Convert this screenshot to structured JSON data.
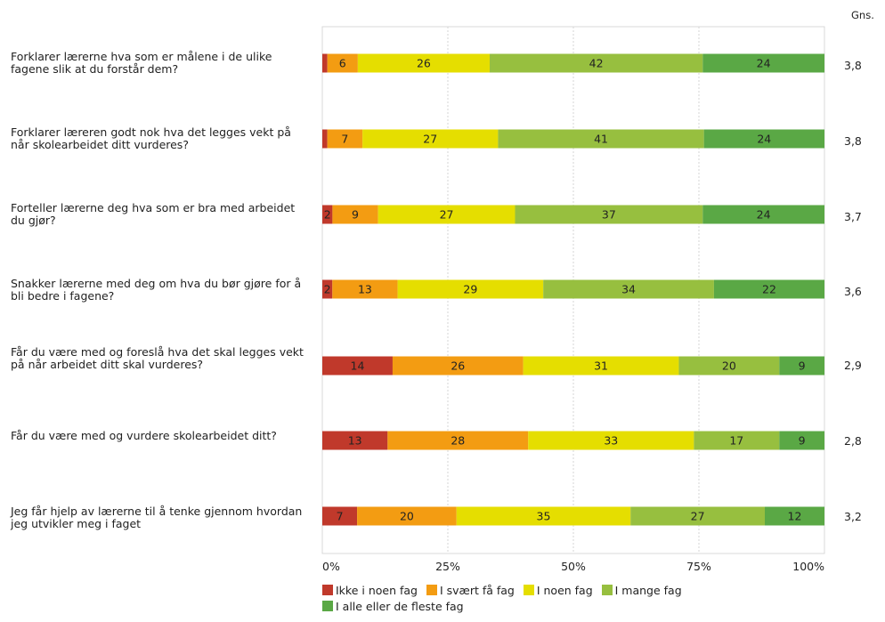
{
  "chart_data": {
    "type": "bar",
    "orientation": "horizontal",
    "stacked": true,
    "avg_header": "Gns.",
    "categories": [
      "Forklarer lærerne hva som er målene i de ulike fagene slik at du forstår dem?",
      "Forklarer læreren godt nok hva det legges vekt på når skolearbeidet ditt vurderes?",
      "Forteller lærerne deg hva som er bra med arbeidet du gjør?",
      "Snakker lærerne med deg om hva du bør gjøre for å bli bedre i fagene?",
      "Får du være med og foreslå hva det skal legges vekt på når arbeidet ditt skal vurderes?",
      "Får du være med og vurdere skolearbeidet ditt?",
      "Jeg får hjelp av lærerne til å tenke gjennom hvordan jeg utvikler meg i faget"
    ],
    "series": [
      {
        "name": "Ikke i noen fag",
        "color": "#c0392b",
        "values": [
          1,
          1,
          2,
          2,
          14,
          13,
          7
        ],
        "labels": [
          "",
          "",
          "2",
          "2",
          "14",
          "13",
          "7"
        ]
      },
      {
        "name": "I svært få fag",
        "color": "#f39c12",
        "values": [
          6,
          7,
          9,
          13,
          26,
          28,
          20
        ],
        "labels": [
          "6",
          "7",
          "9",
          "13",
          "26",
          "28",
          "20"
        ]
      },
      {
        "name": "I noen fag",
        "color": "#e5de00",
        "values": [
          26,
          27,
          27,
          29,
          31,
          33,
          35
        ],
        "labels": [
          "26",
          "27",
          "27",
          "29",
          "31",
          "33",
          "35"
        ]
      },
      {
        "name": "I mange fag",
        "color": "#97bf3f",
        "values": [
          42,
          41,
          37,
          34,
          20,
          17,
          27
        ],
        "labels": [
          "42",
          "41",
          "37",
          "34",
          "20",
          "17",
          "27"
        ]
      },
      {
        "name": "I alle eller de fleste fag",
        "color": "#5aa845",
        "values": [
          24,
          24,
          24,
          22,
          9,
          9,
          12
        ],
        "labels": [
          "24",
          "24",
          "24",
          "22",
          "9",
          "9",
          "12"
        ]
      }
    ],
    "averages": [
      "3,8",
      "3,8",
      "3,7",
      "3,6",
      "2,9",
      "2,8",
      "3,2"
    ],
    "xlim": [
      0,
      100
    ],
    "xticks": [
      "0%",
      "25%",
      "50%",
      "75%",
      "100%"
    ],
    "grid": true,
    "legend_position": "bottom"
  }
}
